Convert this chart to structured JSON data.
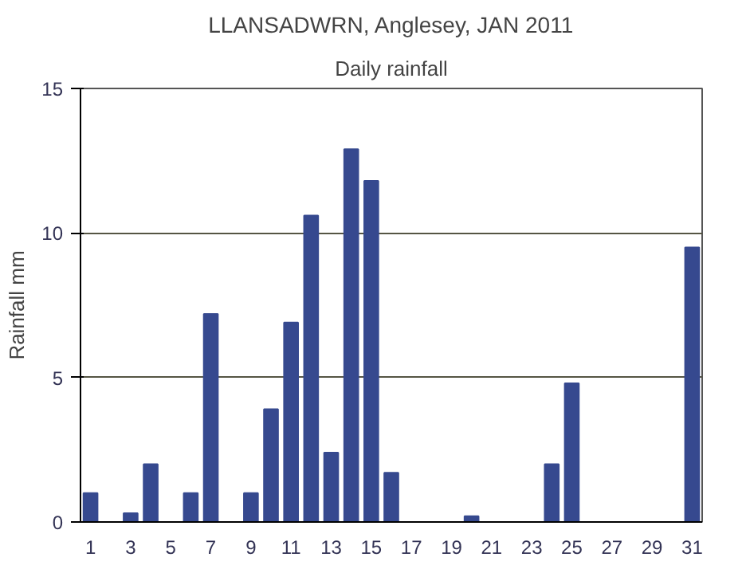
{
  "chart_data": {
    "type": "bar",
    "title": "LLANSADWRN, Anglesey, JAN 2011",
    "subtitle": "Daily rainfall",
    "ylabel": "Rainfall mm",
    "x": [
      1,
      2,
      3,
      4,
      5,
      6,
      7,
      8,
      9,
      10,
      11,
      12,
      13,
      14,
      15,
      16,
      17,
      18,
      19,
      20,
      21,
      22,
      23,
      24,
      25,
      26,
      27,
      28,
      29,
      30,
      31
    ],
    "values": [
      1.0,
      0,
      0.3,
      2.0,
      0,
      1.0,
      7.2,
      0,
      1.0,
      3.9,
      6.9,
      10.6,
      2.4,
      12.9,
      11.8,
      1.7,
      0,
      0,
      0,
      0.2,
      0,
      0,
      0,
      2.0,
      4.8,
      0,
      0,
      0,
      0,
      0,
      9.5
    ],
    "color": "#36498f",
    "xlim": [
      0.5,
      31.5
    ],
    "xticks": [
      1,
      3,
      5,
      7,
      9,
      11,
      13,
      15,
      17,
      19,
      21,
      23,
      25,
      27,
      29,
      31
    ],
    "ylim": [
      0,
      15
    ],
    "yticks": [
      0,
      5,
      10,
      15
    ],
    "grid": "y"
  }
}
